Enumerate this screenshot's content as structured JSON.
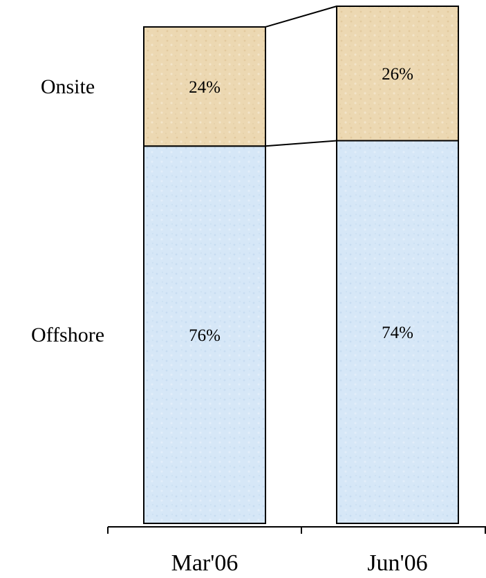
{
  "chart_data": {
    "type": "bar",
    "stacked": true,
    "percent": true,
    "categories": [
      "Mar'06",
      "Jun'06"
    ],
    "series": [
      {
        "name": "Offshore",
        "values": [
          76,
          74
        ],
        "labels": [
          "76%",
          "74%"
        ],
        "color": "#d4e6f7"
      },
      {
        "name": "Onsite",
        "values": [
          24,
          26
        ],
        "labels": [
          "24%",
          "26%"
        ],
        "color": "#ecd9b4"
      }
    ],
    "bar_heights": [
      96,
      100
    ],
    "connector_lines": true,
    "title": "",
    "xlabel": "",
    "ylabel": "",
    "grid": false,
    "legend": "series names to the left of the first bar"
  }
}
